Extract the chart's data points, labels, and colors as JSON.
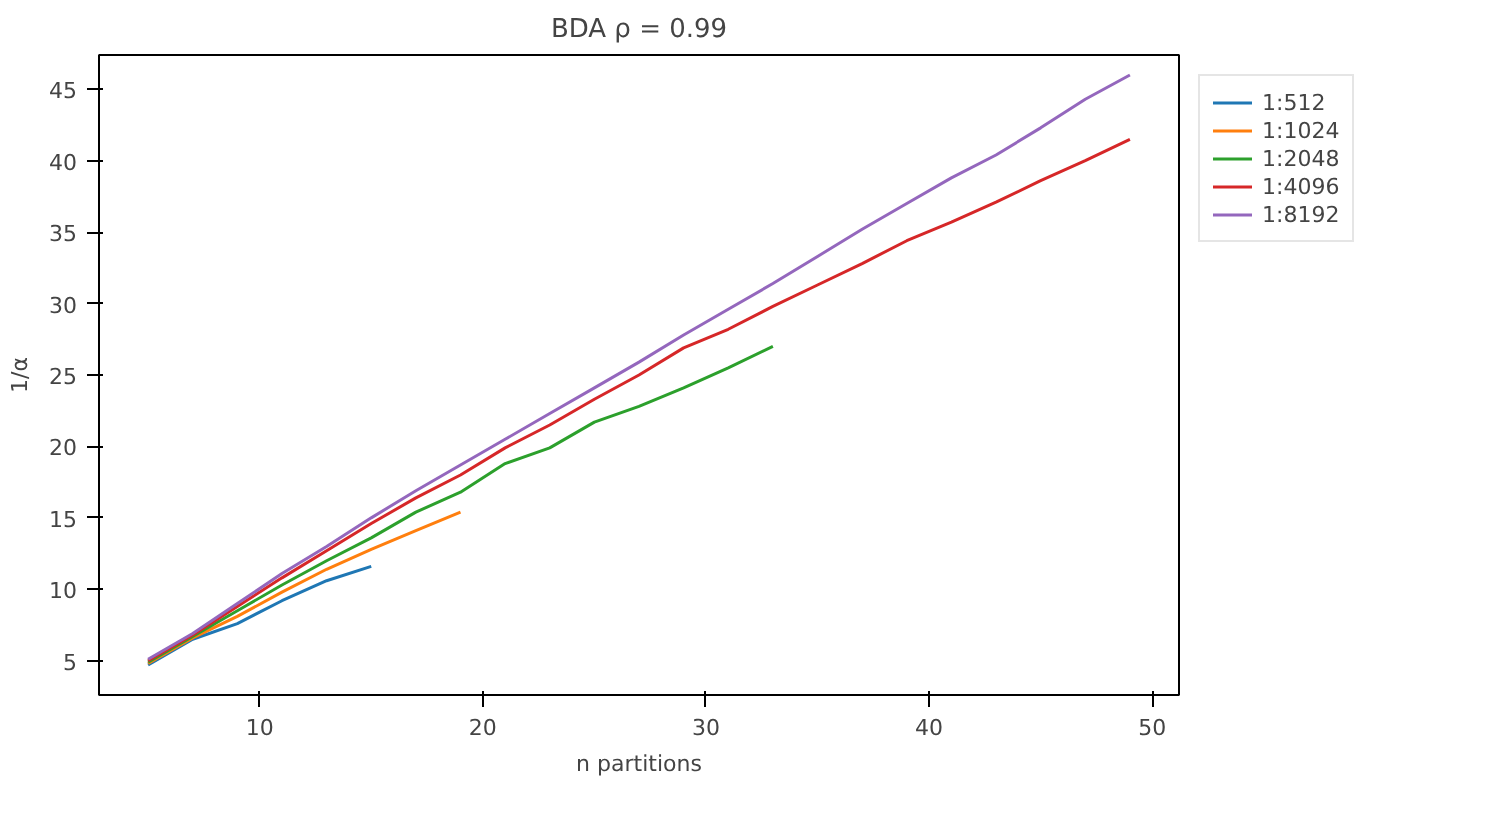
{
  "chart_data": {
    "type": "line",
    "title": "BDA ρ = 0.99",
    "xlabel": "n partitions",
    "ylabel": "1/α",
    "xlim": [
      2.8,
      51.2
    ],
    "ylim": [
      2.6,
      47.4
    ],
    "xticks": [
      10,
      20,
      30,
      40,
      50
    ],
    "yticks": [
      5,
      10,
      15,
      20,
      25,
      30,
      35,
      40,
      45
    ],
    "grid": false,
    "legend": "top right",
    "line_style": "solid",
    "series": [
      {
        "name": "1:512",
        "color": "#1f77b4",
        "x": [
          5,
          7,
          9,
          11,
          13,
          15
        ],
        "values": [
          4.7,
          6.5,
          7.6,
          9.2,
          10.6,
          11.6
        ]
      },
      {
        "name": "1:1024",
        "color": "#ff7f0e",
        "x": [
          5,
          7,
          9,
          11,
          13,
          15,
          17,
          19
        ],
        "values": [
          4.8,
          6.6,
          8.1,
          9.8,
          11.4,
          12.8,
          14.1,
          15.4
        ]
      },
      {
        "name": "1:2048",
        "color": "#2ca02c",
        "x": [
          5,
          7,
          9,
          11,
          13,
          15,
          17,
          19,
          21,
          23,
          25,
          27,
          29,
          31,
          33
        ],
        "values": [
          4.9,
          6.7,
          8.5,
          10.3,
          12.0,
          13.6,
          15.4,
          16.8,
          18.8,
          19.9,
          21.7,
          22.8,
          24.1,
          25.5,
          27.0
        ]
      },
      {
        "name": "1:4096",
        "color": "#d62728",
        "x": [
          5,
          7,
          9,
          11,
          13,
          15,
          17,
          19,
          21,
          23,
          25,
          27,
          29,
          31,
          33,
          35,
          37,
          39,
          41,
          43,
          45,
          47,
          49
        ],
        "values": [
          5.0,
          6.8,
          8.8,
          10.8,
          12.7,
          14.6,
          16.4,
          18.0,
          19.9,
          21.5,
          23.3,
          25.0,
          26.9,
          28.2,
          29.8,
          31.3,
          32.8,
          34.4,
          35.7,
          37.1,
          38.6,
          40.0,
          41.5
        ]
      },
      {
        "name": "1:8192",
        "color": "#9467bd",
        "x": [
          5,
          7,
          9,
          11,
          13,
          15,
          17,
          19,
          21,
          23,
          25,
          27,
          29,
          31,
          33,
          35,
          37,
          39,
          41,
          43,
          45,
          47,
          49
        ],
        "values": [
          5.1,
          6.9,
          9.0,
          11.1,
          13.0,
          15.0,
          16.9,
          18.7,
          20.5,
          22.3,
          24.1,
          25.9,
          27.8,
          29.6,
          31.4,
          33.3,
          35.2,
          37.0,
          38.8,
          40.4,
          42.3,
          44.3,
          46.0
        ]
      }
    ]
  }
}
